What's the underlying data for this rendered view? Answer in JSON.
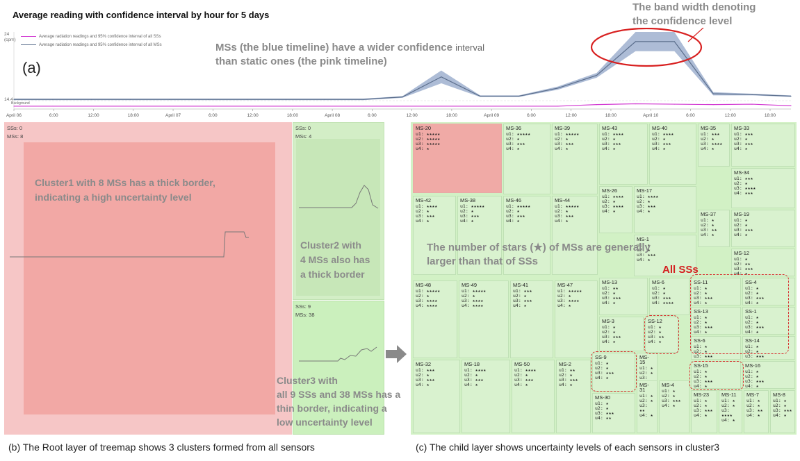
{
  "timeline": {
    "title": "Average reading with confidence interval by hour for 5 days",
    "panel_label": "(a)",
    "legend": [
      {
        "label": "Average radiation readings and 95% confidence interval of all SSs",
        "color": "#d23ad2"
      },
      {
        "label": "Average radiation readings and 95% confidence interval of all MSs",
        "color": "#5b6e8c"
      }
    ],
    "y_top": "24",
    "y_unit": "(cpm)",
    "y_bottom": "14.4",
    "background_label": "Background",
    "annotation_ms": "MSs (the blue timeline) have a wider confidence",
    "annotation_ms_2": "interval",
    "annotation_ms_3": "than static ones (the pink timeline)",
    "annotation_band": "The band width denoting",
    "annotation_band_2": "the confidence level",
    "x_ticks": [
      "April 06",
      "6:00",
      "12:00",
      "18:00",
      "April 07",
      "6:00",
      "12:00",
      "18:00",
      "April 08",
      "6:00",
      "12:00",
      "18:00",
      "April 09",
      "6:00",
      "12:00",
      "18:00",
      "April 10",
      "6:00",
      "12:00",
      "18:00"
    ]
  },
  "chart_data": {
    "type": "line",
    "title": "Average reading with confidence interval by hour for 5 days",
    "xlabel": "",
    "ylabel": "(cpm)",
    "ylim": [
      14.4,
      24
    ],
    "x": [
      "April 06 0:00",
      "April 06 6:00",
      "April 06 12:00",
      "April 06 18:00",
      "April 07 0:00",
      "April 07 6:00",
      "April 07 12:00",
      "April 07 18:00",
      "April 08 0:00",
      "April 08 6:00",
      "April 08 12:00",
      "April 08 18:00",
      "April 09 0:00",
      "April 09 6:00",
      "April 09 12:00",
      "April 09 18:00",
      "April 10 0:00",
      "April 10 6:00",
      "April 10 12:00",
      "April 10 18:00",
      "April 10 23:00"
    ],
    "series": [
      {
        "name": "Average radiation readings and 95% confidence interval of all MSs",
        "color": "#5b6e8c",
        "values": [
          15.6,
          15.6,
          15.6,
          15.6,
          15.6,
          15.6,
          15.6,
          15.6,
          15.6,
          15.6,
          15.9,
          18.4,
          16.0,
          16.0,
          17.0,
          18.6,
          22.8,
          22.8,
          16.3,
          16.2,
          16.0
        ]
      },
      {
        "name": "Average radiation readings and 95% confidence interval of all SSs",
        "color": "#d23ad2",
        "values": [
          14.75,
          14.75,
          14.75,
          14.75,
          14.75,
          14.75,
          14.75,
          14.75,
          14.75,
          14.75,
          14.75,
          14.75,
          14.75,
          14.75,
          14.75,
          14.95,
          15.05,
          15.0,
          14.95,
          15.0,
          14.8
        ]
      }
    ]
  },
  "treemap_root": {
    "cluster1": {
      "ss": "SSs: 0",
      "ms": "MSs: 8",
      "note_1": "Cluster1 with 8 MSs has a thick border,",
      "note_2": "indicating a high uncertainty level"
    },
    "cluster2": {
      "ss": "SSs: 0",
      "ms": "MSs: 4",
      "note_1": "Cluster2 with",
      "note_2": "4 MSs also has",
      "note_3": "a thick border"
    },
    "cluster3": {
      "ss": "SSs: 9",
      "ms": "MSs: 38",
      "note_1": "Cluster3 with",
      "note_2": "all 9 SSs and 38 MSs has a",
      "note_3": "thin border, indicating a",
      "note_4": "low uncertainty level"
    },
    "caption": "(b) The Root layer of treemap shows 3 clusters formed from all sensors"
  },
  "treemap_child": {
    "note_1": "The number of stars (★) of MSs are generally",
    "note_2": "larger than that of SSs",
    "all_ss": "All SSs",
    "caption": "(c) The child layer shows uncertainty levels of each sensors in cluster3",
    "cells": [
      {
        "name": "MS-20",
        "u": [
          "u1: ★★★★★",
          "u2: ★★★★★",
          "u3: ★★★★★",
          "u4: ★"
        ]
      },
      {
        "name": "MS-36",
        "u": [
          "u1: ★★★★★",
          "u2: ★",
          "u3: ★★★",
          "u4: ★"
        ]
      },
      {
        "name": "MS-39",
        "u": [
          "u1: ★★★★★",
          "u2: ★",
          "u3: ★★★",
          "u4: ★"
        ]
      },
      {
        "name": "MS-43",
        "u": [
          "u1: ★★★★",
          "u2: ★",
          "u3: ★★★",
          "u4: ★"
        ]
      },
      {
        "name": "MS-40",
        "u": [
          "u1: ★★★★",
          "u2: ★",
          "u3: ★★★",
          "u4: ★"
        ]
      },
      {
        "name": "MS-35",
        "u": [
          "u1: ★★★",
          "u2: ★",
          "u3: ★★★★",
          "u4: ★"
        ]
      },
      {
        "name": "MS-33",
        "u": [
          "u1: ★★★",
          "u2: ★",
          "u3: ★★★",
          "u4: ★"
        ]
      },
      {
        "name": "MS-34",
        "u": [
          "u1: ★★★",
          "u2: ★",
          "u3: ★★★★",
          "u4: ★★★"
        ]
      },
      {
        "name": "MS-42",
        "u": [
          "u1: ★★★★",
          "u2: ★",
          "u3: ★★★",
          "u4: ★"
        ]
      },
      {
        "name": "MS-38",
        "u": [
          "u1: ★★★★★",
          "u2: ★",
          "u3: ★★★",
          "u4: ★"
        ]
      },
      {
        "name": "MS-46",
        "u": [
          "u1: ★★★★★",
          "u2: ★",
          "u3: ★★★",
          "u4: ★"
        ]
      },
      {
        "name": "MS-44",
        "u": [
          "u1: ★★★★★",
          "u2: ★",
          "u3: ★★★",
          "u4: ★"
        ]
      },
      {
        "name": "MS-26",
        "u": [
          "u1: ★★★★",
          "u2: ★",
          "u3: ★★★★",
          "u4: ★"
        ]
      },
      {
        "name": "MS-17",
        "u": [
          "u1: ★★★★",
          "u2: ★",
          "u3: ★★★",
          "u4: ★"
        ]
      },
      {
        "name": "MS-37",
        "u": [
          "u1: ★",
          "u2: ★",
          "u3: ★★",
          "u4: ★"
        ]
      },
      {
        "name": "MS-19",
        "u": [
          "u1: ★",
          "u2: ★",
          "u3: ★★★",
          "u4: ★"
        ]
      },
      {
        "name": "MS-1",
        "u": [
          "u1: ★",
          "u2: ★",
          "u3: ★★★",
          "u4: ★"
        ]
      },
      {
        "name": "MS-12",
        "u": [
          "u1: ★",
          "u2: ★★",
          "u3: ★★★",
          "u4: ★"
        ]
      },
      {
        "name": "MS-48",
        "u": [
          "u1: ★★★★★",
          "u2: ★",
          "u3: ★★★★",
          "u4: ★★★★"
        ]
      },
      {
        "name": "MS-49",
        "u": [
          "u1: ★★★★★",
          "u2: ★",
          "u3: ★★★★",
          "u4: ★★★★"
        ]
      },
      {
        "name": "MS-41",
        "u": [
          "u1: ★★★",
          "u2: ★",
          "u3: ★★★",
          "u4: ★"
        ]
      },
      {
        "name": "MS-47",
        "u": [
          "u1: ★★★★★",
          "u2: ★",
          "u3: ★★★★",
          "u4: ★"
        ]
      },
      {
        "name": "MS-13",
        "u": [
          "u1: ★★",
          "u2: ★",
          "u3: ★★★",
          "u4: ★"
        ]
      },
      {
        "name": "MS-6",
        "u": [
          "u1: ★",
          "u2: ★",
          "u3: ★★★",
          "u4: ★★★★"
        ]
      },
      {
        "name": "SS-11",
        "u": [
          "u1: ★",
          "u2: ★",
          "u3: ★★★",
          "u4: ★"
        ]
      },
      {
        "name": "SS-4",
        "u": [
          "u1: ★",
          "u2: ★",
          "u3: ★★★",
          "u4: ★"
        ]
      },
      {
        "name": "MS-3",
        "u": [
          "u1: ★",
          "u2: ★",
          "u3: ★★★",
          "u4: ★"
        ]
      },
      {
        "name": "SS-12",
        "u": [
          "u1: ★",
          "u2: ★",
          "u3: ★★",
          "u4: ★"
        ]
      },
      {
        "name": "SS-13",
        "u": [
          "u1: ★",
          "u2: ★",
          "u3: ★★★",
          "u4: ★"
        ]
      },
      {
        "name": "SS-1",
        "u": [
          "u1: ★",
          "u2: ★",
          "u3: ★★★",
          "u4: ★"
        ]
      },
      {
        "name": "SS-6",
        "u": [
          "u1: ★",
          "u2: ★",
          "u3: ★★★",
          "u4: ★"
        ]
      },
      {
        "name": "SS-14",
        "u": [
          "u1: ★",
          "u2: ★",
          "u3: ★★★",
          "u4: ★"
        ]
      },
      {
        "name": "MS-32",
        "u": [
          "u1: ★★★",
          "u2: ★",
          "u3: ★★★",
          "u4: ★"
        ]
      },
      {
        "name": "MS-18",
        "u": [
          "u1: ★★★★",
          "u2: ★",
          "u3: ★★★",
          "u4: ★"
        ]
      },
      {
        "name": "MS-50",
        "u": [
          "u1: ★★★★",
          "u2: ★",
          "u3: ★★★",
          "u4: ★"
        ]
      },
      {
        "name": "MS-2",
        "u": [
          "u1: ★★",
          "u2: ★",
          "u3: ★★★",
          "u4: ★"
        ]
      },
      {
        "name": "SS-9",
        "u": [
          "u1: ★",
          "u2: ★",
          "u3: ★★★",
          "u4: ★"
        ]
      },
      {
        "name": "SS-15",
        "u": [
          "u1: ★",
          "u2: ★",
          "u3: ★★★",
          "u4: ★"
        ]
      },
      {
        "name": "MS-16",
        "u": [
          "u1: ★",
          "u2: ★",
          "u3: ★★★",
          "u4: ★"
        ]
      },
      {
        "name": "MS-15",
        "u": [
          "u1: ★",
          "u2: ★",
          "u3: ★★",
          "u4: ★"
        ]
      },
      {
        "name": "MS-31",
        "u": [
          "u1: ★",
          "u2: ★",
          "u3: ★★",
          "u4: ★"
        ]
      },
      {
        "name": "MS-4",
        "u": [
          "u1: ★",
          "u2: ★",
          "u3: ★★★",
          "u4: ★"
        ]
      },
      {
        "name": "MS-23",
        "u": [
          "u1: ★",
          "u2: ★",
          "u3: ★★★",
          "u4: ★"
        ]
      },
      {
        "name": "MS-11",
        "u": [
          "u1: ★",
          "u2: ★",
          "u3: ★★★★",
          "u4: ★"
        ]
      },
      {
        "name": "MS-7",
        "u": [
          "u1: ★",
          "u2: ★",
          "u3: ★★",
          "u4: ★"
        ]
      },
      {
        "name": "MS-8",
        "u": [
          "u1: ★",
          "u2: ★",
          "u3: ★★★",
          "u4: ★"
        ]
      },
      {
        "name": "MS-30",
        "u": [
          "u1: ★",
          "u2: ★",
          "u3: ★★★",
          "u4: ★★"
        ]
      }
    ]
  }
}
